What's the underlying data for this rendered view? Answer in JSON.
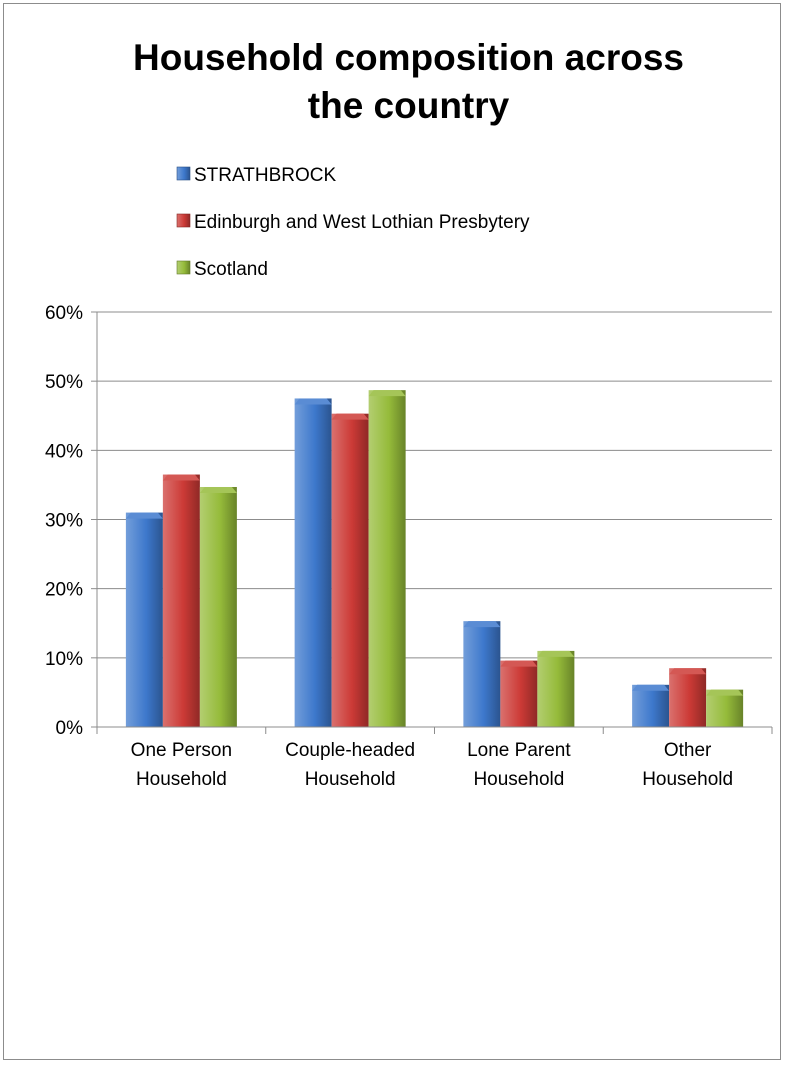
{
  "chart_data": {
    "type": "bar",
    "title_lines": [
      "Household composition across",
      "the country"
    ],
    "categories": [
      [
        "One Person",
        "Household"
      ],
      [
        "Couple-headed",
        "Household"
      ],
      [
        "Lone Parent",
        "Household"
      ],
      [
        "Other",
        "Household"
      ]
    ],
    "series": [
      {
        "name": "STRATHBROCK",
        "color": "#3d78cc",
        "values": [
          31.0,
          47.5,
          15.3,
          6.1
        ]
      },
      {
        "name": "Edinburgh and West Lothian Presbytery",
        "color": "#cc3a36",
        "values": [
          36.5,
          45.3,
          9.6,
          8.5
        ]
      },
      {
        "name": "Scotland",
        "color": "#95bb3a",
        "values": [
          34.7,
          48.7,
          11.0,
          5.4
        ]
      }
    ],
    "ylim": [
      0,
      60
    ],
    "yticks": [
      "0%",
      "10%",
      "20%",
      "30%",
      "40%",
      "50%",
      "60%"
    ],
    "grid": true,
    "legend_position": "top"
  }
}
